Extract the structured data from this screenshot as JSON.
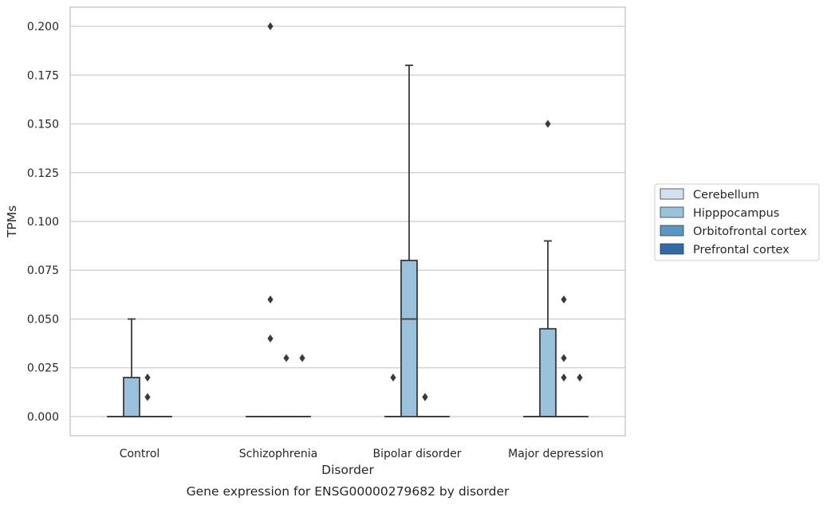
{
  "chart_data": {
    "type": "box",
    "title": "Gene expression for ENSG00000279682 by disorder",
    "xlabel": "Disorder",
    "ylabel": "TPMs",
    "ylim": [
      -0.0098,
      0.2098
    ],
    "yticks": [
      "0.000",
      "0.025",
      "0.050",
      "0.075",
      "0.100",
      "0.125",
      "0.150",
      "0.175",
      "0.200"
    ],
    "grid": "horizontal",
    "legend_position": "right",
    "categories": [
      "Control",
      "Schizophrenia",
      "Bipolar disorder",
      "Major depression"
    ],
    "series": [
      {
        "name": "Cerebellum",
        "color": "#d1e1f0",
        "boxes": [
          {
            "q1": 0,
            "median": 0,
            "q3": 0,
            "whisker_low": 0,
            "whisker_high": 0,
            "outliers": []
          },
          {
            "q1": 0,
            "median": 0,
            "q3": 0,
            "whisker_low": 0,
            "whisker_high": 0,
            "outliers": []
          },
          {
            "q1": 0,
            "median": 0,
            "q3": 0,
            "whisker_low": 0,
            "whisker_high": 0,
            "outliers": [
              0.02
            ]
          },
          {
            "q1": 0,
            "median": 0,
            "q3": 0,
            "whisker_low": 0,
            "whisker_high": 0,
            "outliers": []
          }
        ]
      },
      {
        "name": "Hipppocampus",
        "color": "#9ac2dc",
        "boxes": [
          {
            "q1": 0,
            "median": 0,
            "q3": 0.02,
            "whisker_low": 0,
            "whisker_high": 0.05,
            "outliers": []
          },
          {
            "q1": 0,
            "median": 0,
            "q3": 0,
            "whisker_low": 0,
            "whisker_high": 0,
            "outliers": [
              0.2,
              0.06,
              0.04
            ]
          },
          {
            "q1": 0,
            "median": 0.05,
            "q3": 0.08,
            "whisker_low": 0,
            "whisker_high": 0.18,
            "outliers": []
          },
          {
            "q1": 0,
            "median": 0,
            "q3": 0.045,
            "whisker_low": 0,
            "whisker_high": 0.09,
            "outliers": [
              0.15
            ]
          }
        ]
      },
      {
        "name": "Orbitofrontal cortex",
        "color": "#5a96c4",
        "boxes": [
          {
            "q1": 0,
            "median": 0,
            "q3": 0,
            "whisker_low": 0,
            "whisker_high": 0,
            "outliers": [
              0.02,
              0.01
            ]
          },
          {
            "q1": 0,
            "median": 0,
            "q3": 0,
            "whisker_low": 0,
            "whisker_high": 0,
            "outliers": [
              0.03
            ]
          },
          {
            "q1": 0,
            "median": 0,
            "q3": 0,
            "whisker_low": 0,
            "whisker_high": 0,
            "outliers": [
              0.01,
              0.01
            ]
          },
          {
            "q1": 0,
            "median": 0,
            "q3": 0,
            "whisker_low": 0,
            "whisker_high": 0,
            "outliers": [
              0.06,
              0.03,
              0.02
            ]
          }
        ]
      },
      {
        "name": "Prefrontal cortex",
        "color": "#2f6ba7",
        "boxes": [
          {
            "q1": 0,
            "median": 0,
            "q3": 0,
            "whisker_low": 0,
            "whisker_high": 0,
            "outliers": []
          },
          {
            "q1": 0,
            "median": 0,
            "q3": 0,
            "whisker_low": 0,
            "whisker_high": 0,
            "outliers": [
              0.03
            ]
          },
          {
            "q1": 0,
            "median": 0,
            "q3": 0,
            "whisker_low": 0,
            "whisker_high": 0,
            "outliers": []
          },
          {
            "q1": 0,
            "median": 0,
            "q3": 0,
            "whisker_low": 0,
            "whisker_high": 0,
            "outliers": [
              0.02
            ]
          }
        ]
      }
    ]
  }
}
